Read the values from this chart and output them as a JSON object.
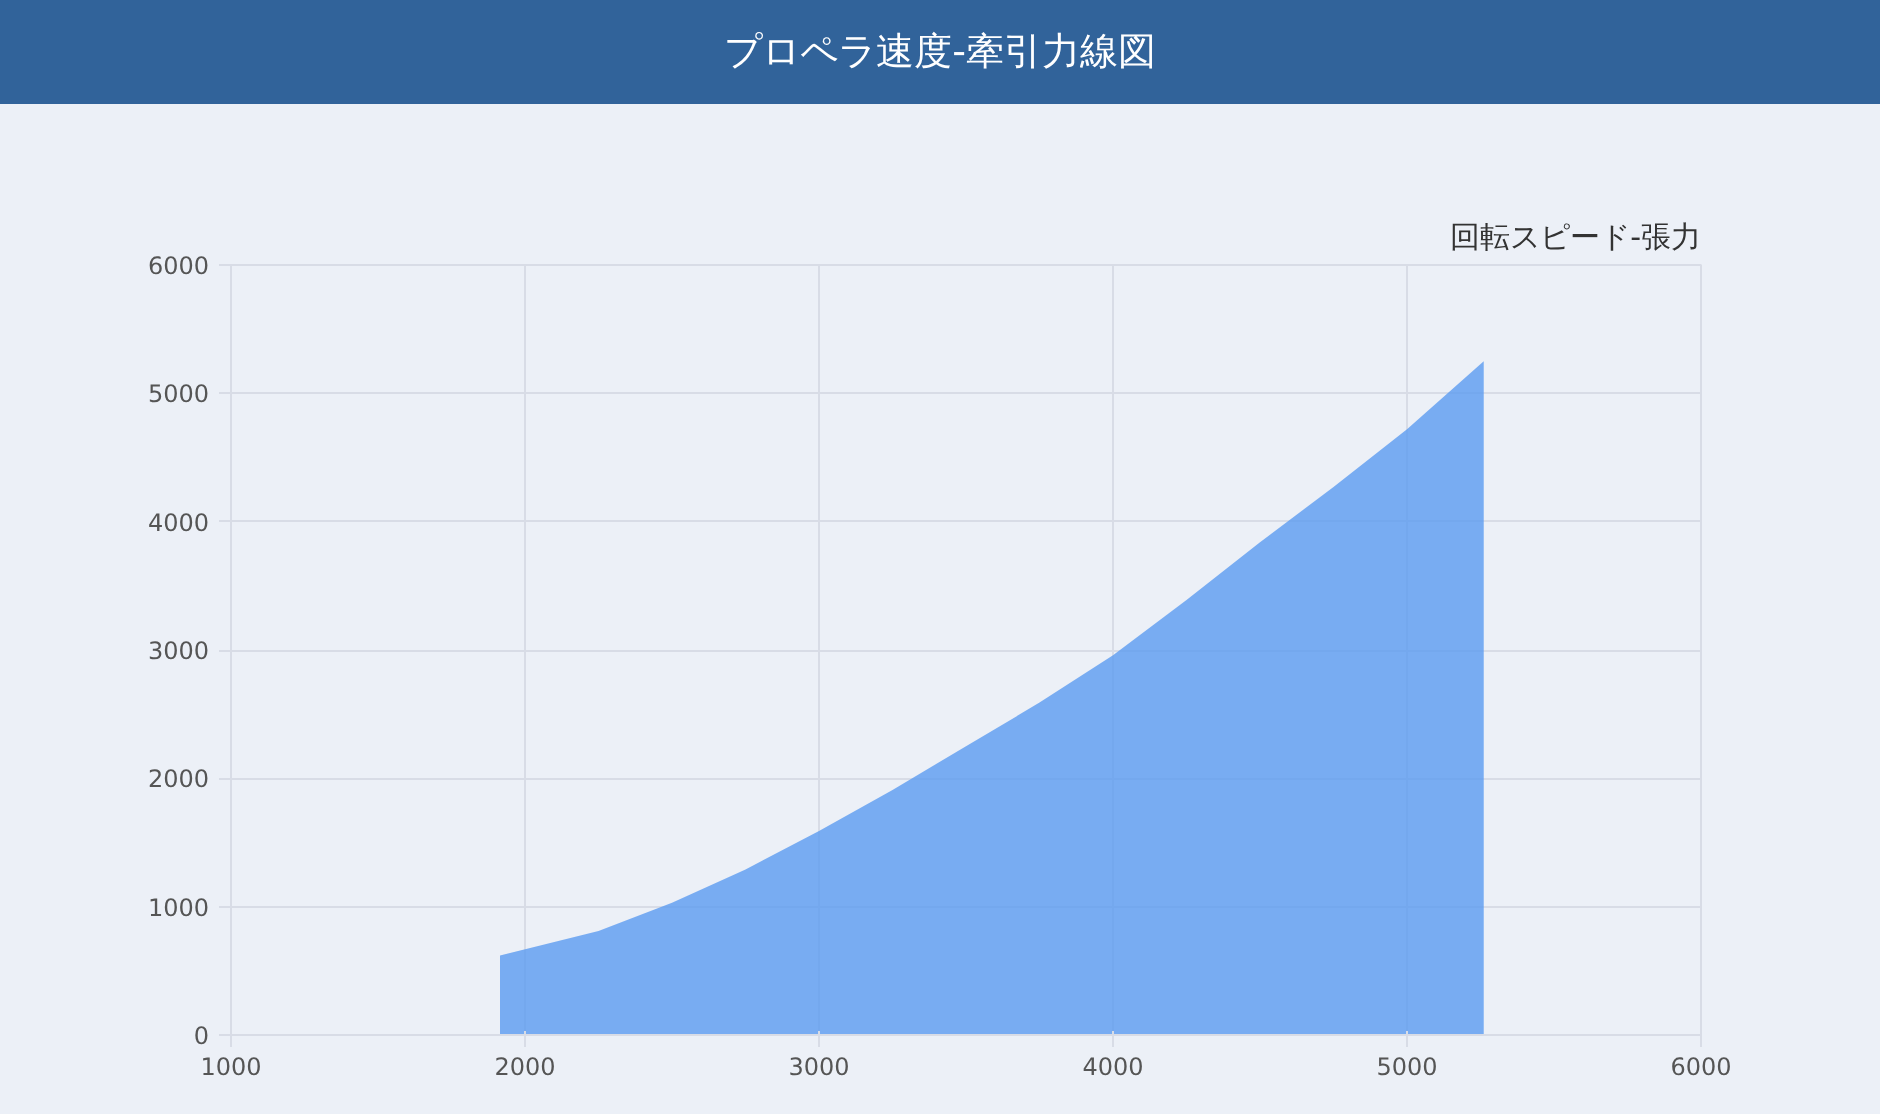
{
  "chart_data": {
    "type": "area",
    "title": "プロペラ速度-牽引力線図",
    "subtitle": "回転スピード-張力",
    "x": [
      1915,
      2250,
      2500,
      2750,
      3000,
      3250,
      3500,
      3750,
      4000,
      4250,
      4500,
      4750,
      5000,
      5261
    ],
    "series": [
      {
        "color": "#5b9bf0",
        "values": [
          620,
          810,
          1030,
          1290,
          1590,
          1910,
          2250,
          2590,
          2960,
          3390,
          3840,
          4270,
          4720,
          5250
        ]
      }
    ],
    "xlim": [
      1000,
      6000
    ],
    "xticks": [
      1000,
      2000,
      3000,
      4000,
      5000,
      6000
    ],
    "ylim": [
      0,
      6000
    ],
    "yticks": [
      0,
      1000,
      2000,
      3000,
      4000,
      5000,
      6000
    ],
    "grid": true
  }
}
